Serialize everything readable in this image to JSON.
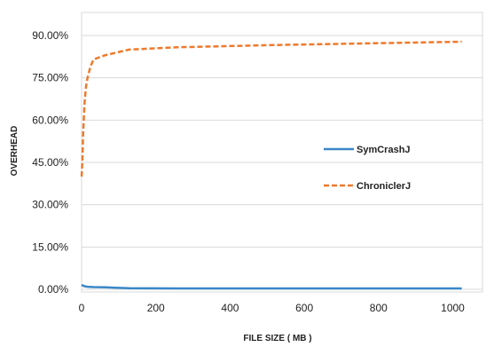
{
  "chart_data": {
    "type": "line",
    "title": "",
    "xlabel": "FILE SIZE ( MB )",
    "ylabel": "OVERHEAD",
    "xlim": [
      0,
      1080
    ],
    "ylim": [
      0,
      0.9
    ],
    "x_ticks": [
      0,
      200,
      400,
      600,
      800,
      1000
    ],
    "y_ticks": [
      0,
      0.15,
      0.3,
      0.45,
      0.6,
      0.75,
      0.9
    ],
    "y_tick_labels": [
      "0.00%",
      "15.00%",
      "30.00%",
      "45.00%",
      "60.00%",
      "75.00%",
      "90.00%"
    ],
    "grid": "horizontal",
    "legend_placement": "right",
    "series": [
      {
        "name": "SymCrashJ",
        "color": "#3a87c8",
        "style": "solid",
        "x": [
          0,
          4,
          8,
          16,
          32,
          64,
          128,
          256,
          512,
          1024
        ],
        "y": [
          0.016,
          0.013,
          0.011,
          0.009,
          0.008,
          0.007,
          0.004,
          0.003,
          0.003,
          0.003
        ]
      },
      {
        "name": "ChroniclerJ",
        "color": "#ee7a2c",
        "style": "dashed",
        "x": [
          0,
          2,
          4,
          8,
          12,
          16,
          24,
          32,
          48,
          64,
          128,
          256,
          512,
          1024
        ],
        "y": [
          0.4,
          0.45,
          0.55,
          0.66,
          0.72,
          0.75,
          0.79,
          0.815,
          0.823,
          0.83,
          0.85,
          0.858,
          0.866,
          0.878
        ]
      }
    ]
  }
}
